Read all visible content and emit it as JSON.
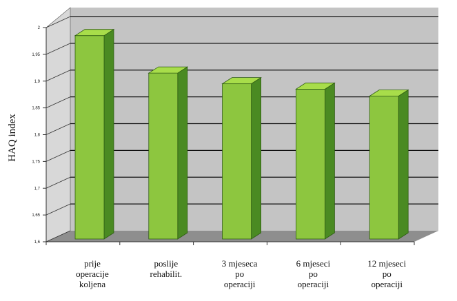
{
  "chart_data": {
    "type": "bar",
    "categories": [
      [
        "prije",
        "operacije",
        "koljena"
      ],
      [
        "poslije",
        "rehabilit."
      ],
      [
        "3 mjeseca",
        "po",
        "operaciji"
      ],
      [
        "6 mjeseci",
        "po",
        "operaciji"
      ],
      [
        "12 mjeseci",
        "po",
        "operaciji"
      ]
    ],
    "values": [
      1.985,
      1.915,
      1.895,
      1.885,
      1.872
    ],
    "ylabel": "HAQ index",
    "yticks": [
      "1,6",
      "1,65",
      "1,7",
      "1,75",
      "1,8",
      "1,85",
      "1,9",
      "1,95",
      "2"
    ],
    "ylim": [
      1.6,
      2.0
    ],
    "grid": true,
    "colors": {
      "bar_front": "#8dc63f",
      "bar_side": "#4a8a22",
      "bar_top": "#a8dd4a",
      "wall": "#c4c4c4",
      "floor": "#8e8e8e",
      "gridline": "#111111"
    }
  }
}
